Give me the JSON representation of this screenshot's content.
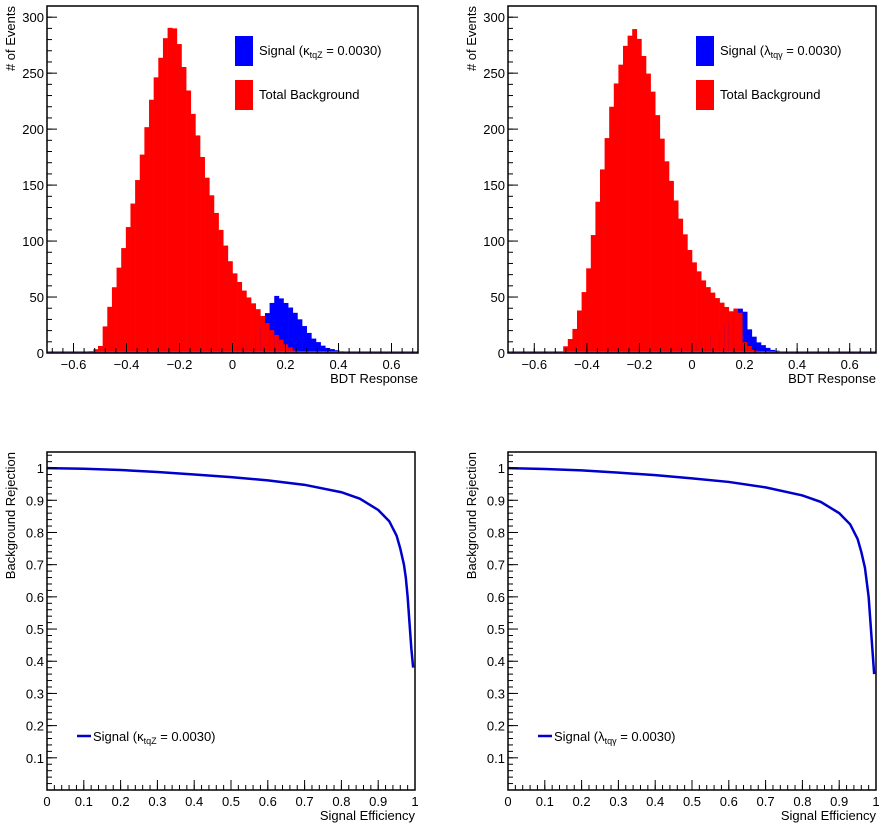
{
  "chart_data": [
    {
      "type": "histogram",
      "panel": "top-left",
      "xlabel": "BDT Response",
      "ylabel": "# of Events",
      "xlim": [
        -0.7,
        0.7
      ],
      "ylim": [
        0,
        310
      ],
      "xticks": [
        -0.6,
        -0.4,
        -0.2,
        0,
        0.2,
        0.4,
        0.6
      ],
      "xtick_labels": [
        "−0.6",
        "−0.4",
        "−0.2",
        "0",
        "0.2",
        "0.4",
        "0.6"
      ],
      "yticks": [
        0,
        50,
        100,
        150,
        200,
        250,
        300
      ],
      "ytick_labels": [
        "0",
        "50",
        "100",
        "150",
        "200",
        "250",
        "300"
      ],
      "legend_position": "top-right",
      "bin_width": 0.0175,
      "series": [
        {
          "name": "Signal",
          "legend_symbol": "κ",
          "legend_sub": "tqZ",
          "legend_value": " = 0.0030",
          "color": "#0000ff",
          "centers": [
            -0.2,
            -0.1,
            -0.05,
            0,
            0.05,
            0.1,
            0.13,
            0.155,
            0.17,
            0.2,
            0.23,
            0.26,
            0.3,
            0.35,
            0.42,
            0.5
          ],
          "values": [
            0,
            2,
            3,
            5,
            8,
            15,
            35,
            48,
            52,
            45,
            38,
            28,
            14,
            5,
            1,
            0
          ]
        },
        {
          "name": "Total Background",
          "color": "#ff0000",
          "centers": [
            -0.55,
            -0.5,
            -0.475,
            -0.45,
            -0.4,
            -0.35,
            -0.3,
            -0.25,
            -0.225,
            -0.2,
            -0.15,
            -0.1,
            -0.05,
            0,
            0.05,
            0.1,
            0.15,
            0.2,
            0.25
          ],
          "values": [
            0,
            5,
            30,
            55,
            105,
            165,
            235,
            285,
            295,
            275,
            215,
            160,
            115,
            75,
            53,
            38,
            20,
            8,
            0
          ]
        }
      ]
    },
    {
      "type": "histogram",
      "panel": "top-right",
      "xlabel": "BDT Response",
      "ylabel": "# of Events",
      "xlim": [
        -0.7,
        0.7
      ],
      "ylim": [
        0,
        310
      ],
      "xticks": [
        -0.6,
        -0.4,
        -0.2,
        0,
        0.2,
        0.4,
        0.6
      ],
      "xtick_labels": [
        "−0.6",
        "−0.4",
        "−0.2",
        "0",
        "0.2",
        "0.4",
        "0.6"
      ],
      "yticks": [
        0,
        50,
        100,
        150,
        200,
        250,
        300
      ],
      "ytick_labels": [
        "0",
        "50",
        "100",
        "150",
        "200",
        "250",
        "300"
      ],
      "legend_position": "top-right",
      "bin_width": 0.0175,
      "series": [
        {
          "name": "Signal",
          "legend_symbol": "λ",
          "legend_sub": "tqγ",
          "legend_value": " = 0.0030",
          "color": "#0000ff",
          "centers": [
            -0.2,
            -0.1,
            -0.05,
            0,
            0.05,
            0.1,
            0.15,
            0.18,
            0.2,
            0.22,
            0.25,
            0.3,
            0.35,
            0.42
          ],
          "values": [
            0,
            3,
            5,
            8,
            12,
            18,
            28,
            40,
            38,
            20,
            10,
            3,
            1,
            0
          ]
        },
        {
          "name": "Total Background",
          "color": "#ff0000",
          "centers": [
            -0.5,
            -0.475,
            -0.45,
            -0.4,
            -0.35,
            -0.3,
            -0.25,
            -0.22,
            -0.2,
            -0.15,
            -0.1,
            -0.05,
            0,
            0.05,
            0.1,
            0.15,
            0.18,
            0.2,
            0.25
          ],
          "values": [
            0,
            8,
            18,
            65,
            150,
            230,
            278,
            290,
            280,
            235,
            175,
            125,
            85,
            62,
            48,
            37,
            42,
            10,
            0
          ]
        }
      ]
    },
    {
      "type": "line",
      "panel": "bottom-left",
      "xlabel": "Signal Efficiency",
      "ylabel": "Background Rejection",
      "xlim": [
        0,
        1
      ],
      "ylim": [
        0,
        1.05
      ],
      "xticks": [
        0,
        0.1,
        0.2,
        0.3,
        0.4,
        0.5,
        0.6,
        0.7,
        0.8,
        0.9,
        1
      ],
      "xtick_labels": [
        "0",
        "0.1",
        "0.2",
        "0.3",
        "0.4",
        "0.5",
        "0.6",
        "0.7",
        "0.8",
        "0.9",
        "1"
      ],
      "yticks": [
        0.1,
        0.2,
        0.3,
        0.4,
        0.5,
        0.6,
        0.7,
        0.8,
        0.9,
        1
      ],
      "ytick_labels": [
        "0.1",
        "0.2",
        "0.3",
        "0.4",
        "0.5",
        "0.6",
        "0.7",
        "0.8",
        "0.9",
        "1"
      ],
      "legend_position": "bottom-left",
      "series": [
        {
          "name": "Signal",
          "legend_symbol": "κ",
          "legend_sub": "tqZ",
          "legend_value": " = 0.0030",
          "color": "#0000cc",
          "x": [
            0,
            0.1,
            0.2,
            0.3,
            0.4,
            0.5,
            0.6,
            0.7,
            0.8,
            0.85,
            0.9,
            0.93,
            0.95,
            0.96,
            0.97,
            0.975,
            0.98,
            0.985,
            0.99,
            0.995
          ],
          "y": [
            1.0,
            0.998,
            0.994,
            0.988,
            0.98,
            0.972,
            0.962,
            0.948,
            0.925,
            0.905,
            0.87,
            0.835,
            0.79,
            0.75,
            0.7,
            0.66,
            0.6,
            0.52,
            0.44,
            0.38
          ]
        }
      ]
    },
    {
      "type": "line",
      "panel": "bottom-right",
      "xlabel": "Signal Efficiency",
      "ylabel": "Background Rejection",
      "xlim": [
        0,
        1
      ],
      "ylim": [
        0,
        1.05
      ],
      "xticks": [
        0,
        0.1,
        0.2,
        0.3,
        0.4,
        0.5,
        0.6,
        0.7,
        0.8,
        0.9,
        1
      ],
      "xtick_labels": [
        "0",
        "0.1",
        "0.2",
        "0.3",
        "0.4",
        "0.5",
        "0.6",
        "0.7",
        "0.8",
        "0.9",
        "1"
      ],
      "yticks": [
        0.1,
        0.2,
        0.3,
        0.4,
        0.5,
        0.6,
        0.7,
        0.8,
        0.9,
        1
      ],
      "ytick_labels": [
        "0.1",
        "0.2",
        "0.3",
        "0.4",
        "0.5",
        "0.6",
        "0.7",
        "0.8",
        "0.9",
        "1"
      ],
      "legend_position": "bottom-left",
      "series": [
        {
          "name": "Signal",
          "legend_symbol": "λ",
          "legend_sub": "tqγ",
          "legend_value": " = 0.0030",
          "color": "#0000cc",
          "x": [
            0,
            0.1,
            0.2,
            0.3,
            0.4,
            0.5,
            0.6,
            0.7,
            0.8,
            0.85,
            0.9,
            0.93,
            0.95,
            0.96,
            0.97,
            0.98,
            0.985,
            0.99,
            0.995
          ],
          "y": [
            1.0,
            0.997,
            0.993,
            0.986,
            0.978,
            0.968,
            0.957,
            0.94,
            0.915,
            0.895,
            0.86,
            0.825,
            0.78,
            0.74,
            0.69,
            0.6,
            0.52,
            0.44,
            0.36
          ]
        }
      ]
    }
  ]
}
